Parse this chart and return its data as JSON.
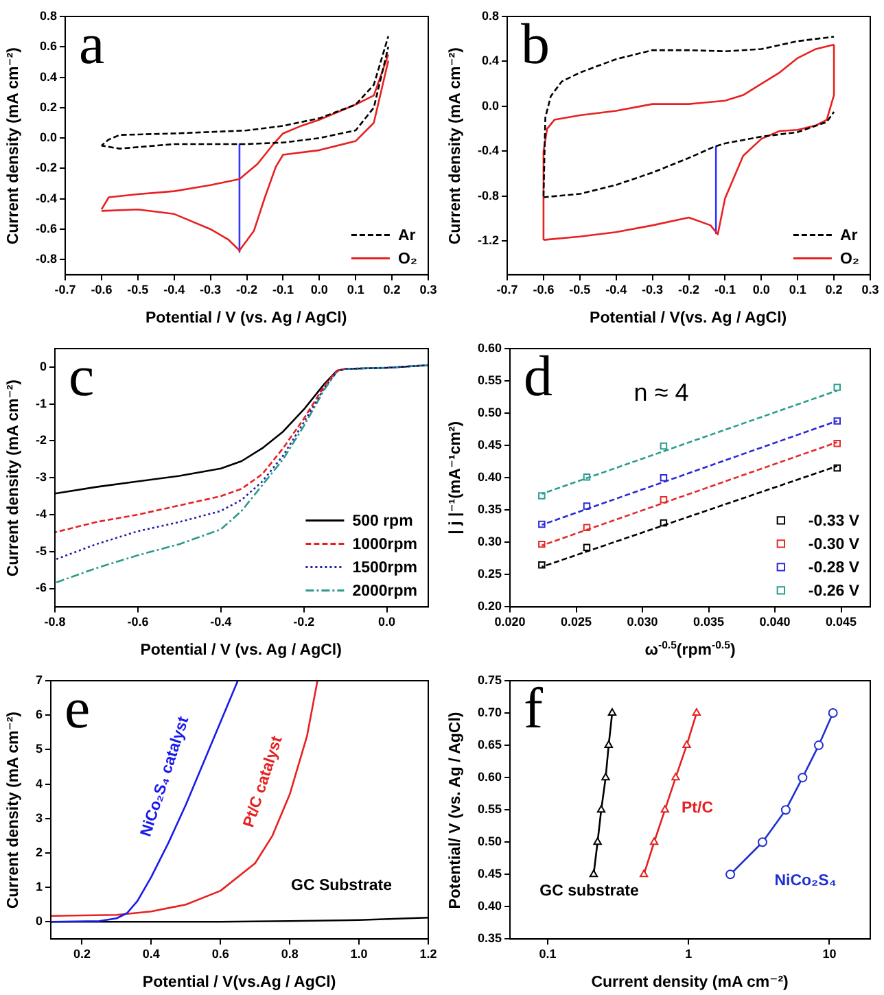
{
  "chart_data": [
    {
      "type": "line",
      "xlabel": "Potential / V (vs. Ag / AgCl)",
      "ylabel": "Current density (mA cm⁻²)",
      "annotations": [
        "a"
      ],
      "legend": "bottom right",
      "xlim": [
        -0.7,
        0.3
      ],
      "ylim": [
        -0.9,
        0.8
      ],
      "xticks": [
        -0.7,
        -0.6,
        -0.5,
        -0.4,
        -0.3,
        -0.2,
        -0.1,
        {
          "value": 0,
          "label": "0.0"
        },
        0.1,
        0.2,
        0.3
      ],
      "yticks": [
        -0.8,
        -0.6,
        -0.4,
        -0.2,
        {
          "value": 0,
          "label": "0.0"
        },
        0.2,
        0.4,
        0.6,
        0.8
      ],
      "series": [
        {
          "name": "Ar",
          "color": "#000000",
          "line_style": "dashed",
          "x": [
            -0.6,
            -0.58,
            -0.55,
            -0.4,
            -0.2,
            -0.1,
            0.0,
            0.1,
            0.15,
            0.19
          ],
          "values": [
            -0.05,
            -0.01,
            0.02,
            0.03,
            0.05,
            0.08,
            0.13,
            0.22,
            0.35,
            0.67
          ]
        },
        {
          "color": "#000000",
          "line_style": "dashed",
          "x": [
            -0.6,
            -0.55,
            -0.4,
            -0.2,
            -0.1,
            0.0,
            0.1,
            0.15,
            0.19
          ],
          "values": [
            -0.05,
            -0.07,
            -0.04,
            -0.04,
            -0.03,
            0.0,
            0.05,
            0.2,
            0.6
          ]
        },
        {
          "name": "O₂",
          "color": "#e82020",
          "line_style": "solid",
          "x": [
            -0.6,
            -0.5,
            -0.4,
            -0.3,
            -0.25,
            -0.22,
            -0.18,
            -0.15,
            -0.12,
            -0.1,
            0.0,
            0.1,
            0.15,
            0.19
          ],
          "values": [
            -0.48,
            -0.47,
            -0.5,
            -0.6,
            -0.67,
            -0.74,
            -0.61,
            -0.39,
            -0.19,
            -0.11,
            -0.08,
            -0.02,
            0.1,
            0.51
          ]
        },
        {
          "color": "#e82020",
          "line_style": "solid",
          "x": [
            -0.6,
            -0.58,
            -0.5,
            -0.4,
            -0.3,
            -0.22,
            -0.17,
            -0.13,
            -0.1,
            -0.05,
            0.0,
            0.1,
            0.15,
            0.19
          ],
          "values": [
            -0.47,
            -0.39,
            -0.37,
            -0.35,
            -0.31,
            -0.27,
            -0.17,
            -0.05,
            0.03,
            0.08,
            0.12,
            0.22,
            0.28,
            0.55
          ]
        },
        {
          "color": "#3333ff",
          "line_style": "solid",
          "x": [
            -0.22,
            -0.22
          ],
          "values": [
            -0.04,
            -0.75
          ]
        }
      ]
    },
    {
      "type": "line",
      "xlabel": "Potential / V(vs. Ag / AgCl)",
      "ylabel": "Current density (mA cm⁻²)",
      "annotations": [
        "b"
      ],
      "legend": "bottom right",
      "xlim": [
        -0.7,
        0.3
      ],
      "ylim": [
        -1.5,
        0.8
      ],
      "xticks": [
        -0.7,
        -0.6,
        -0.5,
        -0.4,
        -0.3,
        -0.2,
        -0.1,
        {
          "value": 0,
          "label": "0.0"
        },
        0.1,
        0.2,
        0.3
      ],
      "yticks": [
        -1.2,
        -0.8,
        -0.4,
        {
          "value": 0,
          "label": "0.0"
        },
        0.4,
        0.8
      ],
      "series": [
        {
          "name": "Ar",
          "color": "#000000",
          "line_style": "dashed",
          "x": [
            -0.6,
            -0.595,
            -0.58,
            -0.55,
            -0.5,
            -0.4,
            -0.3,
            -0.2,
            -0.1,
            0.0,
            0.1,
            0.2
          ],
          "values": [
            -0.8,
            -0.1,
            0.09,
            0.22,
            0.3,
            0.42,
            0.5,
            0.5,
            0.49,
            0.51,
            0.58,
            0.62
          ]
        },
        {
          "color": "#000000",
          "line_style": "dashed",
          "x": [
            -0.6,
            -0.5,
            -0.4,
            -0.3,
            -0.2,
            -0.13,
            -0.1,
            0.0,
            0.1,
            0.18,
            0.2
          ],
          "values": [
            -0.81,
            -0.78,
            -0.7,
            -0.59,
            -0.46,
            -0.36,
            -0.33,
            -0.27,
            -0.23,
            -0.14,
            -0.05
          ]
        },
        {
          "name": "O₂",
          "color": "#e82020",
          "line_style": "solid",
          "x": [
            -0.6,
            -0.6,
            -0.59,
            -0.57,
            -0.5,
            -0.4,
            -0.3,
            -0.2,
            -0.1,
            -0.05,
            0.0,
            0.05,
            0.1,
            0.15,
            0.2
          ],
          "values": [
            -1.19,
            -0.4,
            -0.2,
            -0.12,
            -0.08,
            -0.04,
            0.02,
            0.02,
            0.05,
            0.1,
            0.2,
            0.3,
            0.43,
            0.51,
            0.55
          ]
        },
        {
          "color": "#e82020",
          "line_style": "solid",
          "x": [
            -0.6,
            -0.5,
            -0.4,
            -0.3,
            -0.2,
            -0.14,
            -0.12,
            -0.1,
            -0.05,
            0.0,
            0.05,
            0.1,
            0.15,
            0.18,
            0.2,
            0.2
          ],
          "values": [
            -1.19,
            -1.16,
            -1.12,
            -1.06,
            -0.99,
            -1.06,
            -1.14,
            -0.82,
            -0.44,
            -0.29,
            -0.22,
            -0.21,
            -0.17,
            -0.12,
            0.1,
            0.55
          ]
        },
        {
          "color": "#3333ff",
          "line_style": "solid",
          "x": [
            -0.125,
            -0.125
          ],
          "values": [
            -0.36,
            -1.13
          ]
        }
      ]
    },
    {
      "type": "line",
      "xlabel": "Potential / V (vs. Ag / AgCl)",
      "ylabel": "Current density (mA cm⁻²)",
      "annotations": [
        "c"
      ],
      "legend": "bottom right",
      "xlim": [
        -0.8,
        0.1
      ],
      "ylim": [
        -6.5,
        0.5
      ],
      "xticks": [
        -0.8,
        -0.6,
        -0.4,
        -0.2,
        {
          "value": 0,
          "label": "0.0"
        }
      ],
      "yticks": [
        -6,
        -5,
        -4,
        -3,
        -2,
        -1,
        0
      ],
      "series": [
        {
          "name": "500 rpm",
          "color": "#000000",
          "line_style": "solid",
          "x": [
            -0.8,
            -0.7,
            -0.6,
            -0.5,
            -0.4,
            -0.35,
            -0.3,
            -0.25,
            -0.2,
            -0.15,
            -0.12,
            -0.1,
            0.0,
            0.1
          ],
          "values": [
            -3.43,
            -3.25,
            -3.1,
            -2.95,
            -2.75,
            -2.55,
            -2.2,
            -1.75,
            -1.15,
            -0.45,
            -0.1,
            -0.05,
            -0.02,
            0.05
          ]
        },
        {
          "name": "1000rpm",
          "color": "#e82020",
          "line_style": "dashed",
          "x": [
            -0.8,
            -0.7,
            -0.6,
            -0.5,
            -0.4,
            -0.35,
            -0.3,
            -0.25,
            -0.2,
            -0.15,
            -0.12,
            -0.1
          ],
          "values": [
            -4.48,
            -4.2,
            -4.0,
            -3.75,
            -3.5,
            -3.3,
            -2.9,
            -2.2,
            -1.4,
            -0.5,
            -0.1,
            -0.05
          ]
        },
        {
          "name": "1500rpm",
          "color": "#2020a0",
          "line_style": "dotted",
          "x": [
            -0.8,
            -0.7,
            -0.6,
            -0.5,
            -0.4,
            -0.35,
            -0.3,
            -0.25,
            -0.2,
            -0.15,
            -0.12,
            -0.1,
            0.0,
            0.1
          ],
          "values": [
            -5.22,
            -4.8,
            -4.45,
            -4.2,
            -3.9,
            -3.6,
            -3.1,
            -2.4,
            -1.5,
            -0.55,
            -0.12,
            -0.05,
            -0.02,
            0.05
          ]
        },
        {
          "name": "2000rpm",
          "color": "#2a9a8a",
          "line_style": "dashdot",
          "x": [
            -0.8,
            -0.7,
            -0.6,
            -0.5,
            -0.4,
            -0.35,
            -0.3,
            -0.25,
            -0.2,
            -0.15,
            -0.12,
            -0.1,
            0.0,
            0.1
          ],
          "values": [
            -5.85,
            -5.45,
            -5.1,
            -4.8,
            -4.4,
            -3.9,
            -3.2,
            -2.5,
            -1.6,
            -0.6,
            -0.12,
            -0.05,
            -0.02,
            0.05
          ]
        }
      ]
    },
    {
      "type": "scatter",
      "xlabel": "ω$^{-0.5}$(rpm$^{-0.5}$)",
      "ylabel": "| j |⁻¹(mA⁻¹cm²)",
      "annotations": [
        "d",
        "n ≈ 4"
      ],
      "legend": "bottom right",
      "xlim": [
        0.02,
        0.0472
      ],
      "ylim": [
        0.2,
        0.6
      ],
      "xticks": [
        {
          "value": 0.02,
          "label": "0.020"
        },
        0.025,
        {
          "value": 0.03,
          "label": "0.030"
        },
        0.035,
        {
          "value": 0.04,
          "label": "0.040"
        },
        0.045
      ],
      "yticks": [
        {
          "value": 0.2,
          "label": "0.20"
        },
        0.25,
        {
          "value": 0.3,
          "label": "0.30"
        },
        0.35,
        {
          "value": 0.4,
          "label": "0.40"
        },
        0.45,
        {
          "value": 0.5,
          "label": "0.50"
        },
        0.55,
        {
          "value": 0.6,
          "label": "0.60"
        }
      ],
      "series": [
        {
          "name": "-0.33 V",
          "color": "#000000",
          "marker": "square",
          "x": [
            0.0224,
            0.0258,
            0.0316,
            0.0447
          ],
          "values": [
            0.265,
            0.292,
            0.33,
            0.415
          ]
        },
        {
          "name": "-0.30 V",
          "color": "#e32b2b",
          "marker": "square",
          "x": [
            0.0224,
            0.0258,
            0.0316,
            0.0447
          ],
          "values": [
            0.297,
            0.323,
            0.366,
            0.453
          ]
        },
        {
          "name": "-0.28 V",
          "color": "#2b2bd6",
          "marker": "square",
          "x": [
            0.0224,
            0.0258,
            0.0316,
            0.0447
          ],
          "values": [
            0.328,
            0.356,
            0.4,
            0.488
          ]
        },
        {
          "name": "-0.26 V",
          "color": "#2a9d8f",
          "marker": "square",
          "x": [
            0.0224,
            0.0258,
            0.0316,
            0.0447
          ],
          "values": [
            0.372,
            0.401,
            0.449,
            0.54
          ]
        },
        {
          "type": "line",
          "color": "#000000",
          "line_style": "dashed",
          "x": [
            0.0224,
            0.0447
          ],
          "values": [
            0.262,
            0.418
          ]
        },
        {
          "type": "line",
          "color": "#e32b2b",
          "line_style": "dashed",
          "x": [
            0.0224,
            0.0447
          ],
          "values": [
            0.295,
            0.455
          ]
        },
        {
          "type": "line",
          "color": "#2b2bd6",
          "line_style": "dashed",
          "x": [
            0.0224,
            0.0447
          ],
          "values": [
            0.327,
            0.488
          ]
        },
        {
          "type": "line",
          "color": "#2a9d8f",
          "line_style": "dashed",
          "x": [
            0.0224,
            0.0447
          ],
          "values": [
            0.375,
            0.535
          ]
        }
      ]
    },
    {
      "type": "line",
      "xlabel": "Potential / V(vs.Ag / AgCl)",
      "ylabel": "Current density (mA cm⁻²)",
      "annotations": [
        "e"
      ],
      "xlim": [
        0.11,
        1.2
      ],
      "ylim": [
        -0.5,
        7
      ],
      "xticks": [
        0.2,
        0.4,
        0.6,
        0.8,
        {
          "value": 1,
          "label": "1.0"
        },
        1.2
      ],
      "yticks": [
        0,
        1,
        2,
        3,
        4,
        5,
        6,
        7
      ],
      "series": [
        {
          "name": "NiCo₂S₄ catalyst",
          "color": "#1a1aee",
          "line_style": "solid",
          "x": [
            0.11,
            0.25,
            0.3,
            0.33,
            0.36,
            0.4,
            0.45,
            0.5,
            0.55,
            0.6,
            0.65
          ],
          "values": [
            0,
            0.02,
            0.1,
            0.25,
            0.6,
            1.3,
            2.3,
            3.4,
            4.6,
            5.8,
            7
          ]
        },
        {
          "name": "Pt/C catalyst",
          "color": "#e82020",
          "line_style": "solid",
          "x": [
            0.11,
            0.3,
            0.4,
            0.5,
            0.6,
            0.7,
            0.75,
            0.8,
            0.85,
            0.88
          ],
          "values": [
            0.17,
            0.2,
            0.3,
            0.5,
            0.9,
            1.7,
            2.5,
            3.7,
            5.4,
            7
          ]
        },
        {
          "name": "GC Substrate",
          "color": "#000000",
          "line_style": "solid",
          "x": [
            0.11,
            0.6,
            0.8,
            1.0,
            1.2
          ],
          "values": [
            0,
            0,
            0.02,
            0.05,
            0.12
          ]
        }
      ]
    },
    {
      "type": "line",
      "log": "x",
      "xlabel": "Current density (mA cm⁻²)",
      "ylabel": "Potential/ V (vs. Ag / AgCl)",
      "annotations": [
        "f"
      ],
      "xlim": [
        0.054,
        19.5
      ],
      "ylim": [
        0.35,
        0.75
      ],
      "xticks": [
        0.1,
        1,
        10
      ],
      "yticks": [
        0.35,
        {
          "value": 0.4,
          "label": "0.40"
        },
        0.45,
        {
          "value": 0.5,
          "label": "0.50"
        },
        0.55,
        {
          "value": 0.6,
          "label": "0.60"
        },
        0.65,
        {
          "value": 0.7,
          "label": "0.70"
        },
        0.75
      ],
      "series": [
        {
          "name": "GC substrate",
          "color": "#000000",
          "line_style": "solid",
          "marker": "triangle",
          "x": [
            0.212,
            0.226,
            0.24,
            0.258,
            0.271,
            0.287
          ],
          "values": [
            0.45,
            0.5,
            0.55,
            0.6,
            0.65,
            0.7
          ]
        },
        {
          "name": "Pt/C",
          "color": "#e52020",
          "line_style": "solid",
          "marker": "triangle",
          "x": [
            0.482,
            0.57,
            0.68,
            0.81,
            0.97,
            1.14
          ],
          "values": [
            0.45,
            0.5,
            0.55,
            0.6,
            0.65,
            0.7
          ]
        },
        {
          "name": "NiCo₂S₄",
          "color": "#2030d0",
          "line_style": "solid",
          "marker": "circle",
          "x": [
            1.98,
            3.35,
            4.9,
            6.45,
            8.4,
            10.6
          ],
          "values": [
            0.45,
            0.5,
            0.55,
            0.6,
            0.65,
            0.7
          ]
        }
      ]
    }
  ]
}
